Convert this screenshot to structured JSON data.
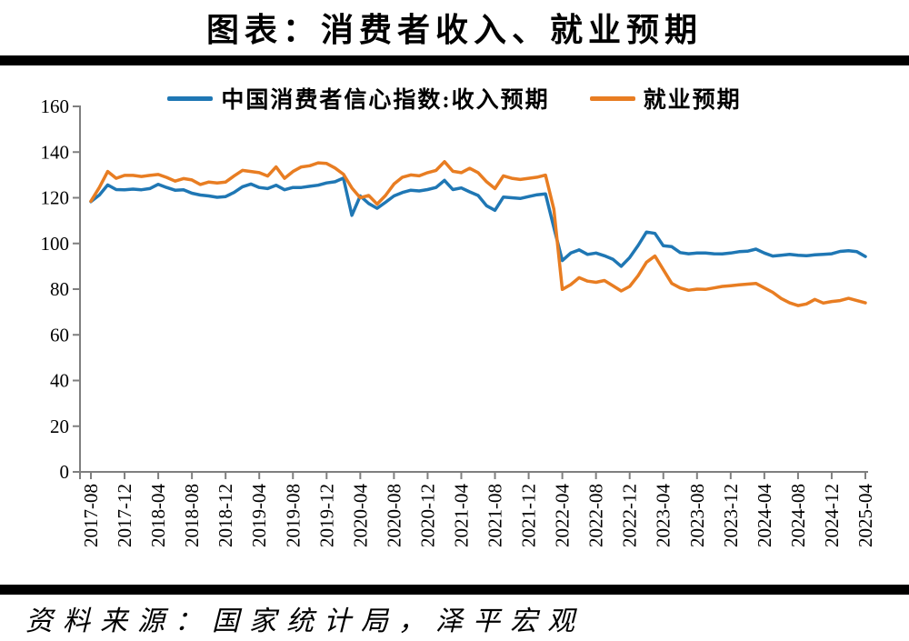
{
  "title": "图表：消费者收入、就业预期",
  "source_note": "资料来源：国家统计局，泽平宏观",
  "legend": [
    {
      "label": "中国消费者信心指数:收入预期",
      "color": "#1F77B4"
    },
    {
      "label": "就业预期",
      "color": "#E87D22"
    }
  ],
  "chart_data": {
    "type": "line",
    "title": "图表：消费者收入、就业预期",
    "xlabel": "",
    "ylabel": "",
    "ylim": [
      0,
      160
    ],
    "y_ticks": [
      0,
      20,
      40,
      60,
      80,
      100,
      120,
      140,
      160
    ],
    "grid": false,
    "legend_position": "top-center",
    "axis_color": "#7F7F7F",
    "x_tick_labels": [
      "2017-08",
      "2017-12",
      "2018-04",
      "2018-08",
      "2018-12",
      "2019-04",
      "2019-08",
      "2019-12",
      "2020-04",
      "2020-08",
      "2020-12",
      "2021-04",
      "2021-08",
      "2021-12",
      "2022-04",
      "2022-08",
      "2022-12",
      "2023-04",
      "2023-08",
      "2023-12",
      "2024-04",
      "2024-08",
      "2024-12",
      "2025-04"
    ],
    "x": [
      "2017-08",
      "2017-09",
      "2017-10",
      "2017-11",
      "2017-12",
      "2018-01",
      "2018-02",
      "2018-03",
      "2018-04",
      "2018-05",
      "2018-06",
      "2018-07",
      "2018-08",
      "2018-09",
      "2018-10",
      "2018-11",
      "2018-12",
      "2019-01",
      "2019-02",
      "2019-03",
      "2019-04",
      "2019-05",
      "2019-06",
      "2019-07",
      "2019-08",
      "2019-09",
      "2019-10",
      "2019-11",
      "2019-12",
      "2020-01",
      "2020-02",
      "2020-03",
      "2020-04",
      "2020-05",
      "2020-06",
      "2020-07",
      "2020-08",
      "2020-09",
      "2020-10",
      "2020-11",
      "2020-12",
      "2021-01",
      "2021-02",
      "2021-03",
      "2021-04",
      "2021-05",
      "2021-06",
      "2021-07",
      "2021-08",
      "2021-09",
      "2021-10",
      "2021-11",
      "2021-12",
      "2022-01",
      "2022-02",
      "2022-03",
      "2022-04",
      "2022-05",
      "2022-06",
      "2022-07",
      "2022-08",
      "2022-09",
      "2022-10",
      "2022-11",
      "2022-12",
      "2023-01",
      "2023-02",
      "2023-03",
      "2023-04",
      "2023-05",
      "2023-06",
      "2023-07",
      "2023-08",
      "2023-09",
      "2023-10",
      "2023-11",
      "2023-12",
      "2024-01",
      "2024-02",
      "2024-03",
      "2024-04",
      "2024-05",
      "2024-06",
      "2024-07",
      "2024-08",
      "2024-09",
      "2024-10",
      "2024-11",
      "2024-12",
      "2025-01",
      "2025-02",
      "2025-03",
      "2025-04"
    ],
    "series": [
      {
        "name": "中国消费者信心指数:收入预期",
        "color": "#1F77B4",
        "values": [
          118.3,
          121.2,
          125.6,
          123.6,
          123.5,
          123.8,
          123.5,
          124.0,
          125.9,
          124.5,
          123.3,
          123.5,
          122.0,
          121.2,
          120.8,
          120.2,
          120.5,
          122.3,
          124.8,
          126.0,
          124.5,
          124.0,
          125.5,
          123.5,
          124.5,
          124.5,
          125.0,
          125.5,
          126.5,
          127.0,
          128.6,
          112.3,
          120.8,
          117.5,
          115.4,
          118.0,
          120.8,
          122.3,
          123.3,
          123.0,
          123.6,
          124.5,
          127.6,
          123.6,
          124.3,
          122.6,
          121.0,
          116.5,
          114.5,
          120.3,
          120.0,
          119.7,
          120.5,
          121.3,
          121.7,
          107.0,
          92.5,
          95.8,
          97.2,
          95.2,
          95.8,
          94.6,
          93.1,
          90.0,
          93.8,
          99.1,
          105.0,
          104.4,
          99.0,
          98.6,
          96.0,
          95.5,
          95.8,
          95.8,
          95.5,
          95.4,
          95.8,
          96.4,
          96.6,
          97.5,
          95.8,
          94.5,
          94.8,
          95.2,
          94.8,
          94.6,
          95.0,
          95.2,
          95.5,
          96.5,
          96.8,
          96.4,
          94.3
        ]
      },
      {
        "name": "就业预期",
        "color": "#E87D22",
        "values": [
          118.5,
          124.5,
          131.5,
          128.5,
          129.8,
          129.8,
          129.3,
          129.8,
          130.2,
          128.9,
          127.3,
          128.4,
          127.8,
          125.8,
          126.9,
          126.5,
          126.9,
          129.5,
          132.0,
          131.5,
          131.0,
          129.5,
          133.5,
          128.5,
          131.5,
          133.5,
          134.0,
          135.3,
          135.0,
          133.0,
          130.3,
          124.3,
          120.0,
          121.0,
          117.2,
          121.0,
          126.0,
          129.0,
          130.0,
          129.6,
          131.0,
          132.0,
          135.8,
          131.6,
          131.0,
          132.9,
          131.0,
          127.0,
          124.0,
          129.6,
          128.5,
          128.0,
          128.5,
          129.0,
          129.9,
          115.0,
          79.9,
          82.0,
          85.0,
          83.5,
          83.0,
          83.8,
          81.5,
          79.2,
          81.2,
          85.9,
          91.8,
          94.5,
          88.5,
          82.5,
          80.5,
          79.5,
          80.0,
          79.9,
          80.5,
          81.2,
          81.5,
          81.9,
          82.2,
          82.5,
          80.5,
          78.6,
          75.9,
          74.0,
          72.8,
          73.5,
          75.5,
          73.9,
          74.6,
          75.0,
          76.0,
          75.0,
          74.0
        ]
      }
    ],
    "source": "资料来源：国家统计局，泽平宏观"
  }
}
